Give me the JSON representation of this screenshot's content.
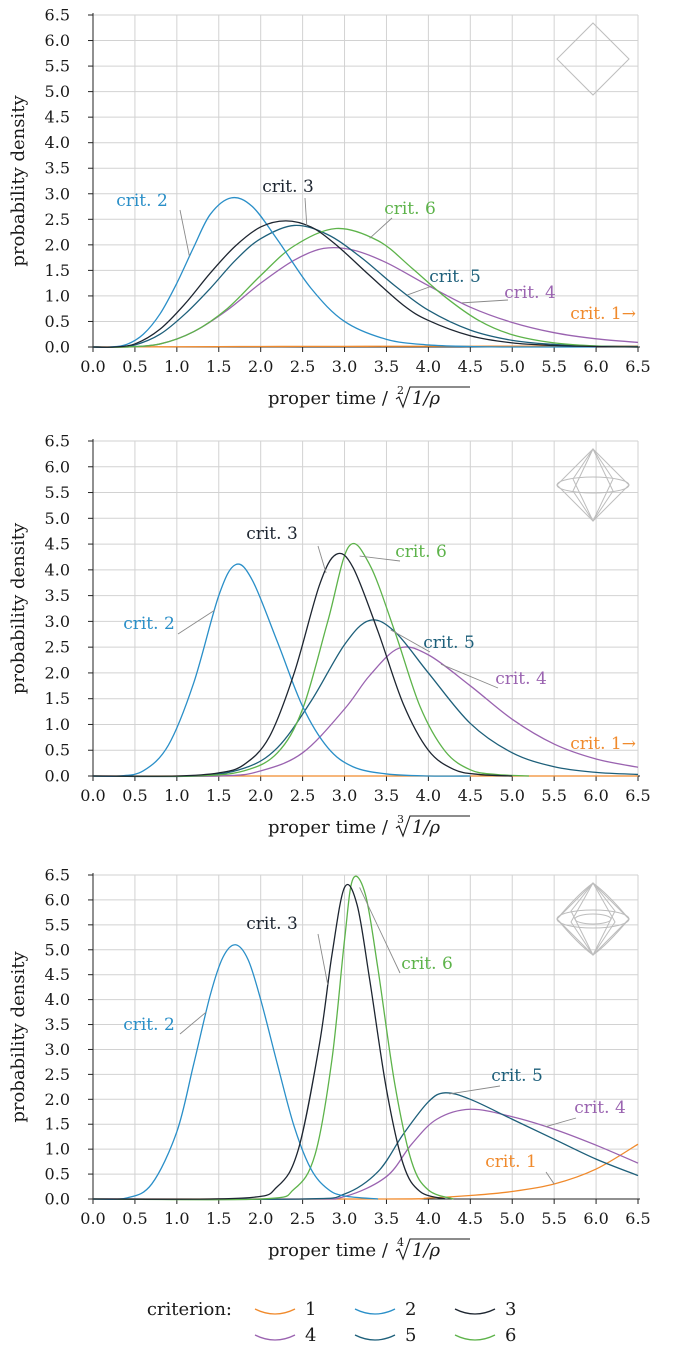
{
  "colors": {
    "c1": "#f08a2c",
    "c2": "#2a8fc8",
    "c3": "#1d2530",
    "c4": "#9a63b0",
    "c5": "#1d5f7a",
    "c6": "#5db34a"
  },
  "legend": {
    "title": "criterion:",
    "items": [
      {
        "key": "1",
        "label": "1"
      },
      {
        "key": "2",
        "label": "2"
      },
      {
        "key": "3",
        "label": "3"
      },
      {
        "key": "4",
        "label": "4"
      },
      {
        "key": "5",
        "label": "5"
      },
      {
        "key": "6",
        "label": "6"
      }
    ]
  },
  "chart_data": [
    {
      "type": "line",
      "ylabel": "probability density",
      "xlabel_text": "proper time /",
      "xlabel_root_index": "2",
      "xlabel_radicand": "1/ρ",
      "xlim": [
        0,
        6.5
      ],
      "ylim": [
        0,
        6.5
      ],
      "xticks": [
        "0.0",
        "0.5",
        "1.0",
        "1.5",
        "2.0",
        "2.5",
        "3.0",
        "3.5",
        "4.0",
        "4.5",
        "5.0",
        "5.5",
        "6.0",
        "6.5"
      ],
      "yticks": [
        "0.0",
        "0.5",
        "1.0",
        "1.5",
        "2.0",
        "2.5",
        "3.0",
        "3.5",
        "4.0",
        "4.5",
        "5.0",
        "5.5",
        "6.0",
        "6.5"
      ],
      "icon": "diamond-2d-icon",
      "series": [
        {
          "key": "1",
          "label": "crit. 1→",
          "x": [
            0.0,
            0.5,
            1.0,
            1.5,
            2.0,
            2.5,
            3.0,
            3.5,
            4.0,
            4.5,
            5.0,
            5.5,
            6.0,
            6.5
          ],
          "y": [
            0.0,
            0.002,
            0.005,
            0.008,
            0.01,
            0.012,
            0.013,
            0.014,
            0.015,
            0.015,
            0.016,
            0.016,
            0.017,
            0.017
          ]
        },
        {
          "key": "2",
          "label": "crit. 2",
          "x": [
            0.0,
            0.2,
            0.4,
            0.6,
            0.8,
            1.0,
            1.2,
            1.4,
            1.65,
            1.9,
            2.2,
            2.6,
            3.0,
            3.5,
            4.0,
            4.5,
            5.0,
            5.5,
            6.0
          ],
          "y": [
            0.0,
            0.0,
            0.05,
            0.25,
            0.65,
            1.25,
            1.95,
            2.6,
            2.92,
            2.75,
            2.1,
            1.15,
            0.5,
            0.15,
            0.04,
            0.01,
            0.0,
            0.0,
            0.0
          ]
        },
        {
          "key": "3",
          "label": "crit. 3",
          "x": [
            0.0,
            0.25,
            0.5,
            0.8,
            1.1,
            1.4,
            1.7,
            2.0,
            2.3,
            2.6,
            2.9,
            3.3,
            3.7,
            4.0,
            4.5,
            5.0,
            5.5,
            6.0,
            6.5
          ],
          "y": [
            0.0,
            0.0,
            0.06,
            0.35,
            0.85,
            1.45,
            1.98,
            2.35,
            2.47,
            2.35,
            2.0,
            1.4,
            0.82,
            0.52,
            0.22,
            0.08,
            0.03,
            0.01,
            0.0
          ]
        },
        {
          "key": "4",
          "label": "crit. 4",
          "x": [
            0.0,
            0.4,
            0.8,
            1.2,
            1.6,
            2.0,
            2.4,
            2.75,
            3.1,
            3.5,
            4.0,
            4.5,
            5.0,
            5.5,
            6.0,
            6.5
          ],
          "y": [
            0.0,
            0.0,
            0.06,
            0.3,
            0.72,
            1.25,
            1.7,
            1.93,
            1.9,
            1.65,
            1.2,
            0.78,
            0.48,
            0.28,
            0.16,
            0.09
          ]
        },
        {
          "key": "5",
          "label": "crit. 5",
          "x": [
            0.0,
            0.25,
            0.5,
            0.8,
            1.1,
            1.4,
            1.7,
            2.0,
            2.4,
            2.8,
            3.2,
            3.6,
            4.0,
            4.5,
            5.0,
            5.5,
            6.0,
            6.5
          ],
          "y": [
            0.0,
            0.0,
            0.04,
            0.25,
            0.65,
            1.15,
            1.7,
            2.12,
            2.38,
            2.2,
            1.75,
            1.2,
            0.72,
            0.33,
            0.13,
            0.05,
            0.02,
            0.01
          ]
        },
        {
          "key": "6",
          "label": "crit. 6",
          "x": [
            0.0,
            0.4,
            0.8,
            1.2,
            1.6,
            2.0,
            2.4,
            2.9,
            3.4,
            3.8,
            4.2,
            4.6,
            5.0,
            5.5,
            6.0,
            6.5
          ],
          "y": [
            0.0,
            0.0,
            0.06,
            0.3,
            0.75,
            1.4,
            1.98,
            2.32,
            2.08,
            1.55,
            0.98,
            0.52,
            0.24,
            0.08,
            0.02,
            0.0
          ]
        }
      ]
    },
    {
      "type": "line",
      "ylabel": "probability density",
      "xlabel_text": "proper time /",
      "xlabel_root_index": "3",
      "xlabel_radicand": "1/ρ",
      "xlim": [
        0,
        6.5
      ],
      "ylim": [
        0,
        6.5
      ],
      "xticks": [
        "0.0",
        "0.5",
        "1.0",
        "1.5",
        "2.0",
        "2.5",
        "3.0",
        "3.5",
        "4.0",
        "4.5",
        "5.0",
        "5.5",
        "6.0",
        "6.5"
      ],
      "yticks": [
        "0.0",
        "0.5",
        "1.0",
        "1.5",
        "2.0",
        "2.5",
        "3.0",
        "3.5",
        "4.0",
        "4.5",
        "5.0",
        "5.5",
        "6.0",
        "6.5"
      ],
      "icon": "octahedron-icon",
      "series": [
        {
          "key": "1",
          "label": "crit. 1→",
          "x": [
            0.0,
            1.0,
            2.0,
            3.0,
            4.0,
            5.0,
            6.0,
            6.5
          ],
          "y": [
            0.0,
            0.0,
            0.0,
            0.0,
            0.0,
            0.0,
            0.0,
            0.0
          ]
        },
        {
          "key": "2",
          "label": "crit. 2",
          "x": [
            0.0,
            0.3,
            0.6,
            0.9,
            1.2,
            1.5,
            1.7,
            1.9,
            2.2,
            2.5,
            2.8,
            3.1,
            3.5,
            4.0,
            4.5
          ],
          "y": [
            0.0,
            0.0,
            0.1,
            0.6,
            1.8,
            3.5,
            4.1,
            3.8,
            2.6,
            1.35,
            0.55,
            0.18,
            0.04,
            0.0,
            0.0
          ]
        },
        {
          "key": "3",
          "label": "crit. 3",
          "x": [
            0.0,
            1.0,
            1.5,
            1.8,
            2.1,
            2.4,
            2.7,
            2.9,
            3.1,
            3.4,
            3.7,
            4.0,
            4.3,
            4.6,
            5.0
          ],
          "y": [
            0.0,
            0.0,
            0.06,
            0.22,
            0.75,
            2.0,
            3.7,
            4.3,
            4.05,
            2.8,
            1.4,
            0.5,
            0.13,
            0.03,
            0.0
          ]
        },
        {
          "key": "4",
          "label": "crit. 4",
          "x": [
            0.0,
            1.5,
            2.0,
            2.5,
            3.0,
            3.3,
            3.65,
            4.0,
            4.5,
            5.0,
            5.5,
            6.0,
            6.5
          ],
          "y": [
            0.0,
            0.0,
            0.1,
            0.45,
            1.3,
            1.95,
            2.48,
            2.35,
            1.75,
            1.1,
            0.62,
            0.33,
            0.17
          ]
        },
        {
          "key": "5",
          "label": "crit. 5",
          "x": [
            0.0,
            1.2,
            1.8,
            2.2,
            2.6,
            3.0,
            3.3,
            3.6,
            4.0,
            4.5,
            5.0,
            5.5,
            6.0,
            6.5
          ],
          "y": [
            0.0,
            0.0,
            0.15,
            0.55,
            1.45,
            2.55,
            3.02,
            2.8,
            2.0,
            1.02,
            0.45,
            0.18,
            0.07,
            0.03
          ]
        },
        {
          "key": "6",
          "label": "crit. 6",
          "x": [
            0.0,
            1.2,
            1.8,
            2.2,
            2.5,
            2.8,
            3.05,
            3.3,
            3.6,
            3.9,
            4.2,
            4.5,
            4.8,
            5.2
          ],
          "y": [
            0.0,
            0.0,
            0.1,
            0.45,
            1.3,
            3.0,
            4.45,
            4.1,
            2.8,
            1.35,
            0.48,
            0.12,
            0.03,
            0.0
          ]
        }
      ]
    },
    {
      "type": "line",
      "ylabel": "probability density",
      "xlabel_text": "proper time /",
      "xlabel_root_index": "4",
      "xlabel_radicand": "1/ρ",
      "xlim": [
        0,
        6.5
      ],
      "ylim": [
        0,
        6.5
      ],
      "xticks": [
        "0.0",
        "0.5",
        "1.0",
        "1.5",
        "2.0",
        "2.5",
        "3.0",
        "3.5",
        "4.0",
        "4.5",
        "5.0",
        "5.5",
        "6.0",
        "6.5"
      ],
      "yticks": [
        "0.0",
        "0.5",
        "1.0",
        "1.5",
        "2.0",
        "2.5",
        "3.0",
        "3.5",
        "4.0",
        "4.5",
        "5.0",
        "5.5",
        "6.0",
        "6.5"
      ],
      "icon": "polytope-4d-icon",
      "series": [
        {
          "key": "1",
          "label": "crit. 1",
          "x": [
            0.0,
            3.5,
            4.0,
            4.5,
            5.0,
            5.5,
            6.0,
            6.5
          ],
          "y": [
            0.0,
            0.0,
            0.02,
            0.07,
            0.15,
            0.3,
            0.6,
            1.1
          ]
        },
        {
          "key": "2",
          "label": "crit. 2",
          "x": [
            0.0,
            0.4,
            0.7,
            1.0,
            1.2,
            1.4,
            1.55,
            1.7,
            1.85,
            2.0,
            2.2,
            2.4,
            2.6,
            2.8,
            3.0,
            3.4
          ],
          "y": [
            0.0,
            0.02,
            0.3,
            1.35,
            2.7,
            4.1,
            4.85,
            5.1,
            4.8,
            4.0,
            2.7,
            1.45,
            0.6,
            0.2,
            0.06,
            0.0
          ]
        },
        {
          "key": "3",
          "label": "crit. 3",
          "x": [
            0.0,
            1.8,
            2.2,
            2.45,
            2.7,
            2.85,
            3.0,
            3.15,
            3.3,
            3.5,
            3.7,
            3.9,
            4.2
          ],
          "y": [
            0.0,
            0.02,
            0.25,
            1.0,
            3.1,
            4.9,
            6.25,
            5.9,
            4.4,
            2.2,
            0.7,
            0.15,
            0.0
          ]
        },
        {
          "key": "4",
          "label": "crit. 4",
          "x": [
            0.0,
            2.5,
            3.0,
            3.5,
            3.8,
            4.1,
            4.5,
            5.0,
            5.5,
            6.0,
            6.5
          ],
          "y": [
            0.0,
            0.0,
            0.05,
            0.45,
            1.1,
            1.6,
            1.8,
            1.65,
            1.4,
            1.08,
            0.72
          ]
        },
        {
          "key": "5",
          "label": "crit. 5",
          "x": [
            0.0,
            2.5,
            3.0,
            3.4,
            3.7,
            4.0,
            4.2,
            4.5,
            5.0,
            5.5,
            6.0,
            6.5
          ],
          "y": [
            0.0,
            0.0,
            0.1,
            0.55,
            1.3,
            1.95,
            2.13,
            2.0,
            1.6,
            1.2,
            0.8,
            0.47
          ]
        },
        {
          "key": "6",
          "label": "crit. 6",
          "x": [
            0.0,
            2.0,
            2.4,
            2.65,
            2.85,
            3.0,
            3.1,
            3.25,
            3.4,
            3.6,
            3.8,
            4.0,
            4.3
          ],
          "y": [
            0.0,
            0.0,
            0.2,
            0.9,
            2.8,
            5.2,
            6.42,
            6.1,
            4.6,
            2.3,
            0.75,
            0.18,
            0.0
          ]
        }
      ]
    }
  ]
}
